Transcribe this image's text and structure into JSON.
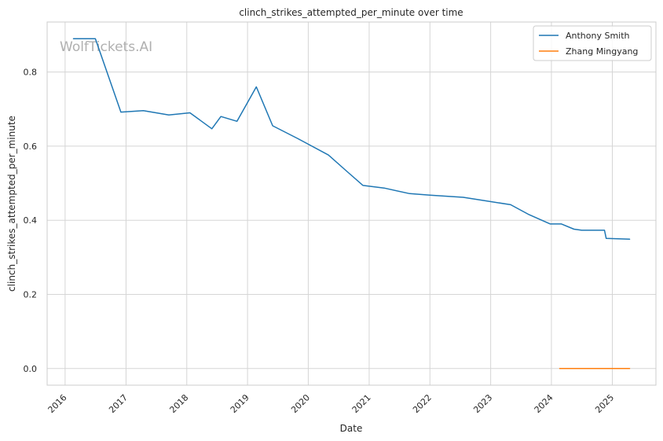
{
  "watermark": "WolfTickets.AI",
  "colors": {
    "series_0": "#1f77b4",
    "series_1": "#ff7f0e"
  },
  "chart_data": {
    "type": "line",
    "title": "clinch_strikes_attempted_per_minute over time",
    "xlabel": "Date",
    "ylabel": "clinch_strikes_attempted_per_minute",
    "x_ticks": [
      "2016",
      "2017",
      "2018",
      "2019",
      "2020",
      "2021",
      "2022",
      "2023",
      "2024",
      "2025"
    ],
    "y_ticks": [
      "0.0",
      "0.2",
      "0.4",
      "0.6",
      "0.8"
    ],
    "xlim": [
      "2015-09-15",
      "2025-09-20"
    ],
    "ylim": [
      -0.045,
      0.935
    ],
    "grid": true,
    "legend_position": "top-right",
    "series": [
      {
        "name": "Anthony Smith",
        "points": [
          [
            "2016-02-20",
            0.89
          ],
          [
            "2016-07-01",
            0.89
          ],
          [
            "2016-12-01",
            0.692
          ],
          [
            "2017-04-15",
            0.696
          ],
          [
            "2017-09-15",
            0.684
          ],
          [
            "2018-01-20",
            0.69
          ],
          [
            "2018-06-01",
            0.647
          ],
          [
            "2018-07-25",
            0.68
          ],
          [
            "2018-10-30",
            0.667
          ],
          [
            "2019-02-23",
            0.76
          ],
          [
            "2019-06-01",
            0.655
          ],
          [
            "2019-11-01",
            0.62
          ],
          [
            "2020-05-01",
            0.576
          ],
          [
            "2020-08-20",
            0.532
          ],
          [
            "2020-11-25",
            0.494
          ],
          [
            "2021-04-01",
            0.487
          ],
          [
            "2021-09-01",
            0.472
          ],
          [
            "2022-01-01",
            0.468
          ],
          [
            "2022-07-20",
            0.462
          ],
          [
            "2023-05-01",
            0.442
          ],
          [
            "2023-08-20",
            0.415
          ],
          [
            "2023-12-25",
            0.39
          ],
          [
            "2024-03-01",
            0.39
          ],
          [
            "2024-05-15",
            0.376
          ],
          [
            "2024-07-01",
            0.373
          ],
          [
            "2024-11-15",
            0.373
          ],
          [
            "2024-11-25",
            0.351
          ],
          [
            "2025-04-15",
            0.349
          ]
        ]
      },
      {
        "name": "Zhang Mingyang",
        "points": [
          [
            "2024-02-20",
            0.0
          ],
          [
            "2025-04-15",
            0.0
          ]
        ]
      }
    ]
  }
}
